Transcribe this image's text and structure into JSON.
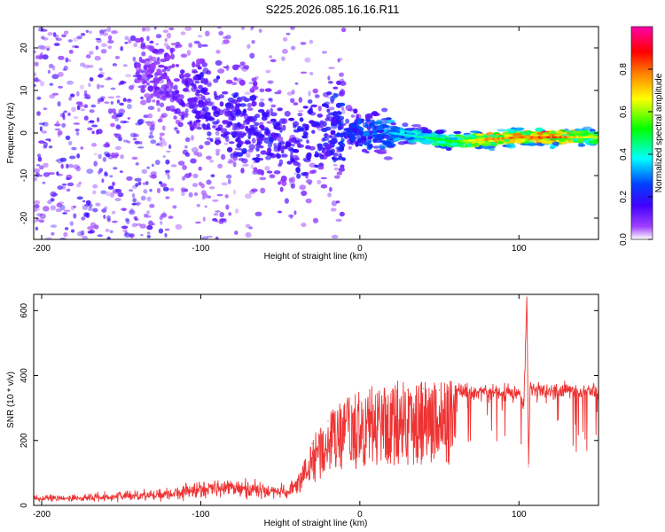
{
  "figure": {
    "title": "S225.2026.085.16.16.R11"
  },
  "chart_data": [
    {
      "type": "heatmap",
      "title": "",
      "xlabel": "Height of straight line (km)",
      "ylabel": "Frequency (Hz)",
      "xlim": [
        -205,
        150
      ],
      "ylim": [
        -25,
        25
      ],
      "x_ticks": [
        -200,
        -100,
        0,
        100
      ],
      "y_ticks": [
        -20,
        -10,
        0,
        10,
        20
      ],
      "colorbar": {
        "label": "Normalized spectral amplitude",
        "range": [
          0,
          1
        ],
        "ticks": [
          0.0,
          0.2,
          0.4,
          0.6,
          0.8
        ],
        "colors": [
          "#ffffff",
          "#8000ff",
          "#0000ff",
          "#00ffff",
          "#00ff00",
          "#ffff00",
          "#ff8000",
          "#ff0000",
          "#ff00ff"
        ]
      },
      "signal_track": {
        "x": [
          -140,
          -120,
          -100,
          -80,
          -60,
          -40,
          -20,
          0,
          20,
          40,
          60,
          80,
          100,
          120,
          150
        ],
        "freq_hz": [
          15,
          12,
          7,
          3,
          0,
          -2,
          1,
          0,
          0,
          -1,
          -2,
          -1.5,
          -1,
          -1,
          -1
        ],
        "amplitude": [
          0.1,
          0.12,
          0.18,
          0.2,
          0.2,
          0.2,
          0.22,
          0.28,
          0.35,
          0.45,
          0.55,
          0.75,
          0.8,
          0.85,
          0.6
        ]
      }
    },
    {
      "type": "line",
      "title": "",
      "xlabel": "Height of straight line (km)",
      "ylabel": "SNR (10 * v/v)",
      "xlim": [
        -205,
        150
      ],
      "ylim": [
        0,
        650
      ],
      "x_ticks": [
        -200,
        -100,
        0,
        100
      ],
      "y_ticks": [
        0,
        200,
        400,
        600
      ],
      "color": "#ee3333",
      "series": [
        {
          "x": [
            -205,
            -180,
            -150,
            -120,
            -100,
            -80,
            -60,
            -45,
            -40,
            -35,
            -30,
            -25,
            -20,
            -10,
            0,
            10,
            20,
            30,
            40,
            50,
            60,
            70,
            80,
            90,
            100,
            103,
            105,
            106,
            107,
            110,
            120,
            130,
            140,
            150
          ],
          "values": [
            20,
            22,
            28,
            35,
            50,
            55,
            45,
            40,
            70,
            130,
            190,
            230,
            260,
            300,
            320,
            340,
            350,
            355,
            360,
            355,
            350,
            345,
            350,
            345,
            350,
            300,
            650,
            120,
            360,
            355,
            350,
            355,
            350,
            355
          ]
        }
      ]
    }
  ]
}
